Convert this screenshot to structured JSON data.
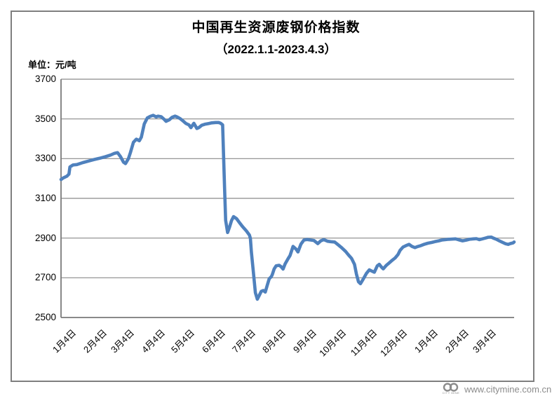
{
  "header": {
    "title": "中国再生资源废钢价格指数",
    "subtitle": "（2022.1.1-2023.4.3）",
    "unit_label": "单位：元/吨"
  },
  "watermark": {
    "url": "www.citymine.com.cn",
    "logo_caption": "CITY MINE"
  },
  "chart_data": {
    "type": "line",
    "title": "中国再生资源废钢价格指数",
    "subtitle": "（2022.1.1-2023.4.3）",
    "ylabel": "单位：元/吨",
    "ylim": [
      2500,
      3700
    ],
    "yticks": [
      3700,
      3500,
      3300,
      3100,
      2900,
      2700,
      2500
    ],
    "grid": "horizontal",
    "legend": "none",
    "line_color": "#4F81BD",
    "grid_color": "#8a8a8a",
    "axis_color": "#7a7a7a",
    "x_range_days": [
      0,
      457
    ],
    "xtick_labels": [
      "1月4日",
      "2月4日",
      "3月4日",
      "4月4日",
      "5月4日",
      "6月4日",
      "7月4日",
      "8月4日",
      "9月4日",
      "10月4日",
      "11月4日",
      "12月4日",
      "1月4日",
      "2月4日",
      "3月4日"
    ],
    "xtick_days": [
      3,
      34,
      62,
      93,
      123,
      154,
      184,
      215,
      246,
      276,
      307,
      337,
      368,
      399,
      427
    ],
    "series": [
      {
        "points": [
          [
            0,
            3195
          ],
          [
            2,
            3202
          ],
          [
            6,
            3212
          ],
          [
            8,
            3222
          ],
          [
            9,
            3258
          ],
          [
            12,
            3268
          ],
          [
            16,
            3270
          ],
          [
            22,
            3280
          ],
          [
            28,
            3288
          ],
          [
            33,
            3295
          ],
          [
            39,
            3302
          ],
          [
            45,
            3310
          ],
          [
            50,
            3318
          ],
          [
            54,
            3327
          ],
          [
            57,
            3330
          ],
          [
            60,
            3310
          ],
          [
            63,
            3282
          ],
          [
            65,
            3275
          ],
          [
            68,
            3300
          ],
          [
            70,
            3330
          ],
          [
            73,
            3382
          ],
          [
            76,
            3398
          ],
          [
            79,
            3390
          ],
          [
            81,
            3408
          ],
          [
            84,
            3475
          ],
          [
            87,
            3505
          ],
          [
            90,
            3513
          ],
          [
            93,
            3518
          ],
          [
            96,
            3510
          ],
          [
            98,
            3514
          ],
          [
            101,
            3511
          ],
          [
            104,
            3498
          ],
          [
            106,
            3488
          ],
          [
            109,
            3495
          ],
          [
            112,
            3508
          ],
          [
            115,
            3514
          ],
          [
            117,
            3510
          ],
          [
            120,
            3502
          ],
          [
            123,
            3490
          ],
          [
            126,
            3477
          ],
          [
            129,
            3470
          ],
          [
            131,
            3456
          ],
          [
            134,
            3478
          ],
          [
            137,
            3452
          ],
          [
            139,
            3456
          ],
          [
            142,
            3468
          ],
          [
            145,
            3473
          ],
          [
            149,
            3477
          ],
          [
            152,
            3480
          ],
          [
            156,
            3482
          ],
          [
            159,
            3482
          ],
          [
            161,
            3478
          ],
          [
            163,
            3470
          ],
          [
            165,
            3150
          ],
          [
            166,
            2990
          ],
          [
            168,
            2928
          ],
          [
            170,
            2956
          ],
          [
            172,
            2988
          ],
          [
            174,
            3008
          ],
          [
            177,
            2998
          ],
          [
            180,
            2978
          ],
          [
            183,
            2958
          ],
          [
            187,
            2936
          ],
          [
            190,
            2915
          ],
          [
            191,
            2898
          ],
          [
            192,
            2830
          ],
          [
            194,
            2730
          ],
          [
            196,
            2625
          ],
          [
            198,
            2592
          ],
          [
            200,
            2612
          ],
          [
            202,
            2632
          ],
          [
            204,
            2636
          ],
          [
            206,
            2628
          ],
          [
            208,
            2662
          ],
          [
            210,
            2695
          ],
          [
            212,
            2705
          ],
          [
            213,
            2715
          ],
          [
            215,
            2745
          ],
          [
            217,
            2760
          ],
          [
            220,
            2763
          ],
          [
            222,
            2756
          ],
          [
            224,
            2744
          ],
          [
            226,
            2770
          ],
          [
            229,
            2796
          ],
          [
            231,
            2812
          ],
          [
            234,
            2858
          ],
          [
            237,
            2845
          ],
          [
            239,
            2830
          ],
          [
            242,
            2870
          ],
          [
            245,
            2890
          ],
          [
            248,
            2893
          ],
          [
            252,
            2890
          ],
          [
            255,
            2888
          ],
          [
            259,
            2872
          ],
          [
            262,
            2886
          ],
          [
            265,
            2892
          ],
          [
            269,
            2884
          ],
          [
            272,
            2882
          ],
          [
            276,
            2880
          ],
          [
            279,
            2868
          ],
          [
            283,
            2852
          ],
          [
            287,
            2833
          ],
          [
            290,
            2815
          ],
          [
            293,
            2798
          ],
          [
            296,
            2768
          ],
          [
            298,
            2718
          ],
          [
            300,
            2680
          ],
          [
            302,
            2670
          ],
          [
            305,
            2695
          ],
          [
            308,
            2722
          ],
          [
            311,
            2740
          ],
          [
            313,
            2735
          ],
          [
            316,
            2728
          ],
          [
            319,
            2760
          ],
          [
            321,
            2768
          ],
          [
            323,
            2755
          ],
          [
            325,
            2745
          ],
          [
            328,
            2762
          ],
          [
            331,
            2775
          ],
          [
            334,
            2788
          ],
          [
            337,
            2800
          ],
          [
            340,
            2818
          ],
          [
            342,
            2838
          ],
          [
            345,
            2855
          ],
          [
            348,
            2862
          ],
          [
            351,
            2868
          ],
          [
            354,
            2858
          ],
          [
            357,
            2852
          ],
          [
            359,
            2856
          ],
          [
            363,
            2862
          ],
          [
            366,
            2868
          ],
          [
            370,
            2874
          ],
          [
            374,
            2878
          ],
          [
            377,
            2882
          ],
          [
            381,
            2886
          ],
          [
            384,
            2890
          ],
          [
            388,
            2892
          ],
          [
            391,
            2894
          ],
          [
            395,
            2895
          ],
          [
            398,
            2896
          ],
          [
            402,
            2890
          ],
          [
            405,
            2886
          ],
          [
            409,
            2890
          ],
          [
            412,
            2894
          ],
          [
            416,
            2896
          ],
          [
            419,
            2897
          ],
          [
            422,
            2892
          ],
          [
            425,
            2896
          ],
          [
            428,
            2900
          ],
          [
            431,
            2904
          ],
          [
            434,
            2905
          ],
          [
            436,
            2900
          ],
          [
            439,
            2894
          ],
          [
            442,
            2886
          ],
          [
            445,
            2879
          ],
          [
            448,
            2872
          ],
          [
            451,
            2868
          ],
          [
            453,
            2872
          ],
          [
            456,
            2876
          ],
          [
            457,
            2880
          ]
        ]
      }
    ]
  }
}
